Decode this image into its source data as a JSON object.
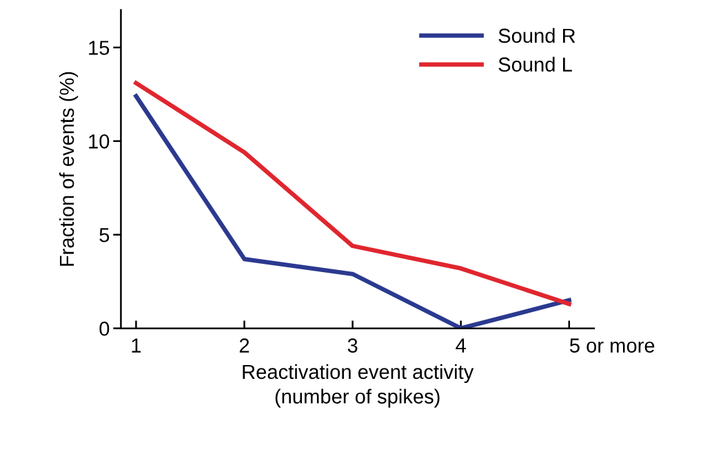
{
  "chart_data": {
    "type": "line",
    "xlabel": "Reactivation event activity\n(number of spikes)",
    "ylabel": "Fraction of events (%)",
    "categories": [
      "1",
      "2",
      "3",
      "4",
      "5 or more"
    ],
    "series": [
      {
        "name": "Sound R",
        "color": "#2b3990",
        "values": [
          12.4,
          3.7,
          2.9,
          0,
          1.5
        ]
      },
      {
        "name": "Sound L",
        "color": "#e0262f",
        "values": [
          13.1,
          9.4,
          4.4,
          3.2,
          1.3
        ]
      }
    ],
    "ylim": [
      0,
      17
    ],
    "yticks": [
      0,
      5,
      10,
      15
    ],
    "grid": false,
    "legend": "top right",
    "marker": "none",
    "line_style": "solid"
  }
}
